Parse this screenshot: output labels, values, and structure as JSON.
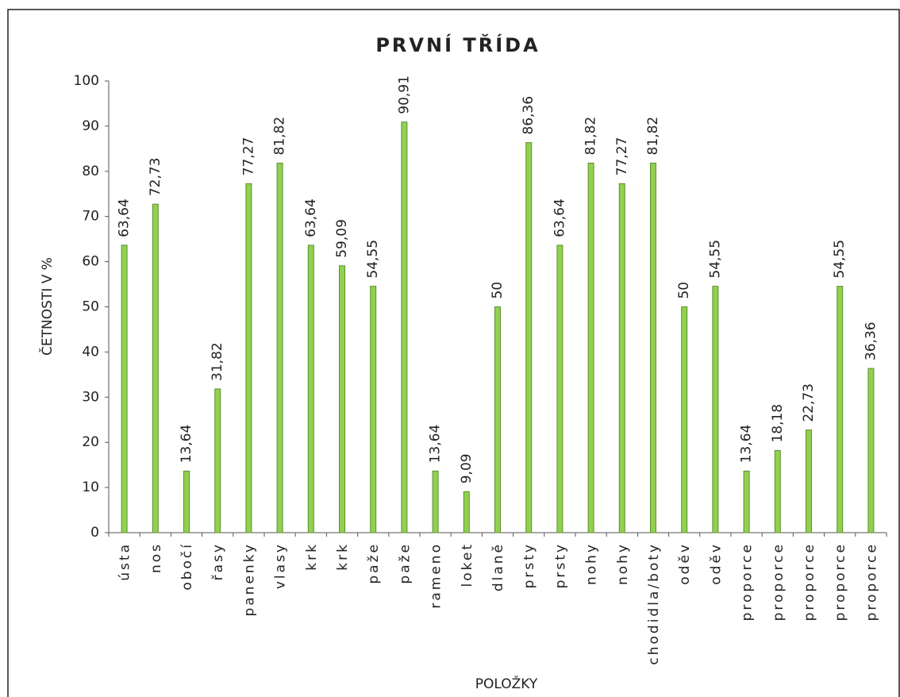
{
  "chart_data": {
    "type": "bar",
    "title": "PRVNÍ TŘÍDA",
    "x_label": "POLOŽKY",
    "y_label": "ČETNOSTI V %",
    "categories": [
      "ústa",
      "nos",
      "obočí",
      "řasy",
      "panenky",
      "vlasy",
      "krk",
      "krk",
      "paže",
      "paže",
      "rameno",
      "loket",
      "dlaně",
      "prsty",
      "prsty",
      "nohy",
      "nohy",
      "chodidla/boty",
      "oděv",
      "oděv",
      "proporce",
      "proporce",
      "proporce",
      "proporce",
      "proporce"
    ],
    "values": [
      63.64,
      72.73,
      13.64,
      31.82,
      77.27,
      81.82,
      63.64,
      59.09,
      54.55,
      90.91,
      13.64,
      9.09,
      50,
      86.36,
      63.64,
      81.82,
      77.27,
      81.82,
      50,
      54.55,
      13.64,
      18.18,
      22.73,
      54.55,
      36.36
    ],
    "value_labels": [
      "63,64",
      "72,73",
      "13,64",
      "31,82",
      "77,27",
      "81,82",
      "63,64",
      "59,09",
      "54,55",
      "90,91",
      "13,64",
      "9,09",
      "50",
      "86,36",
      "63,64",
      "81,82",
      "77,27",
      "81,82",
      "50",
      "54,55",
      "13,64",
      "18,18",
      "22,73",
      "54,55",
      "36,36"
    ],
    "color": "#92d050",
    "ylim": [
      0,
      100
    ],
    "yticks": [
      0,
      10,
      20,
      30,
      40,
      50,
      60,
      70,
      80,
      90,
      100
    ],
    "grid": false
  }
}
